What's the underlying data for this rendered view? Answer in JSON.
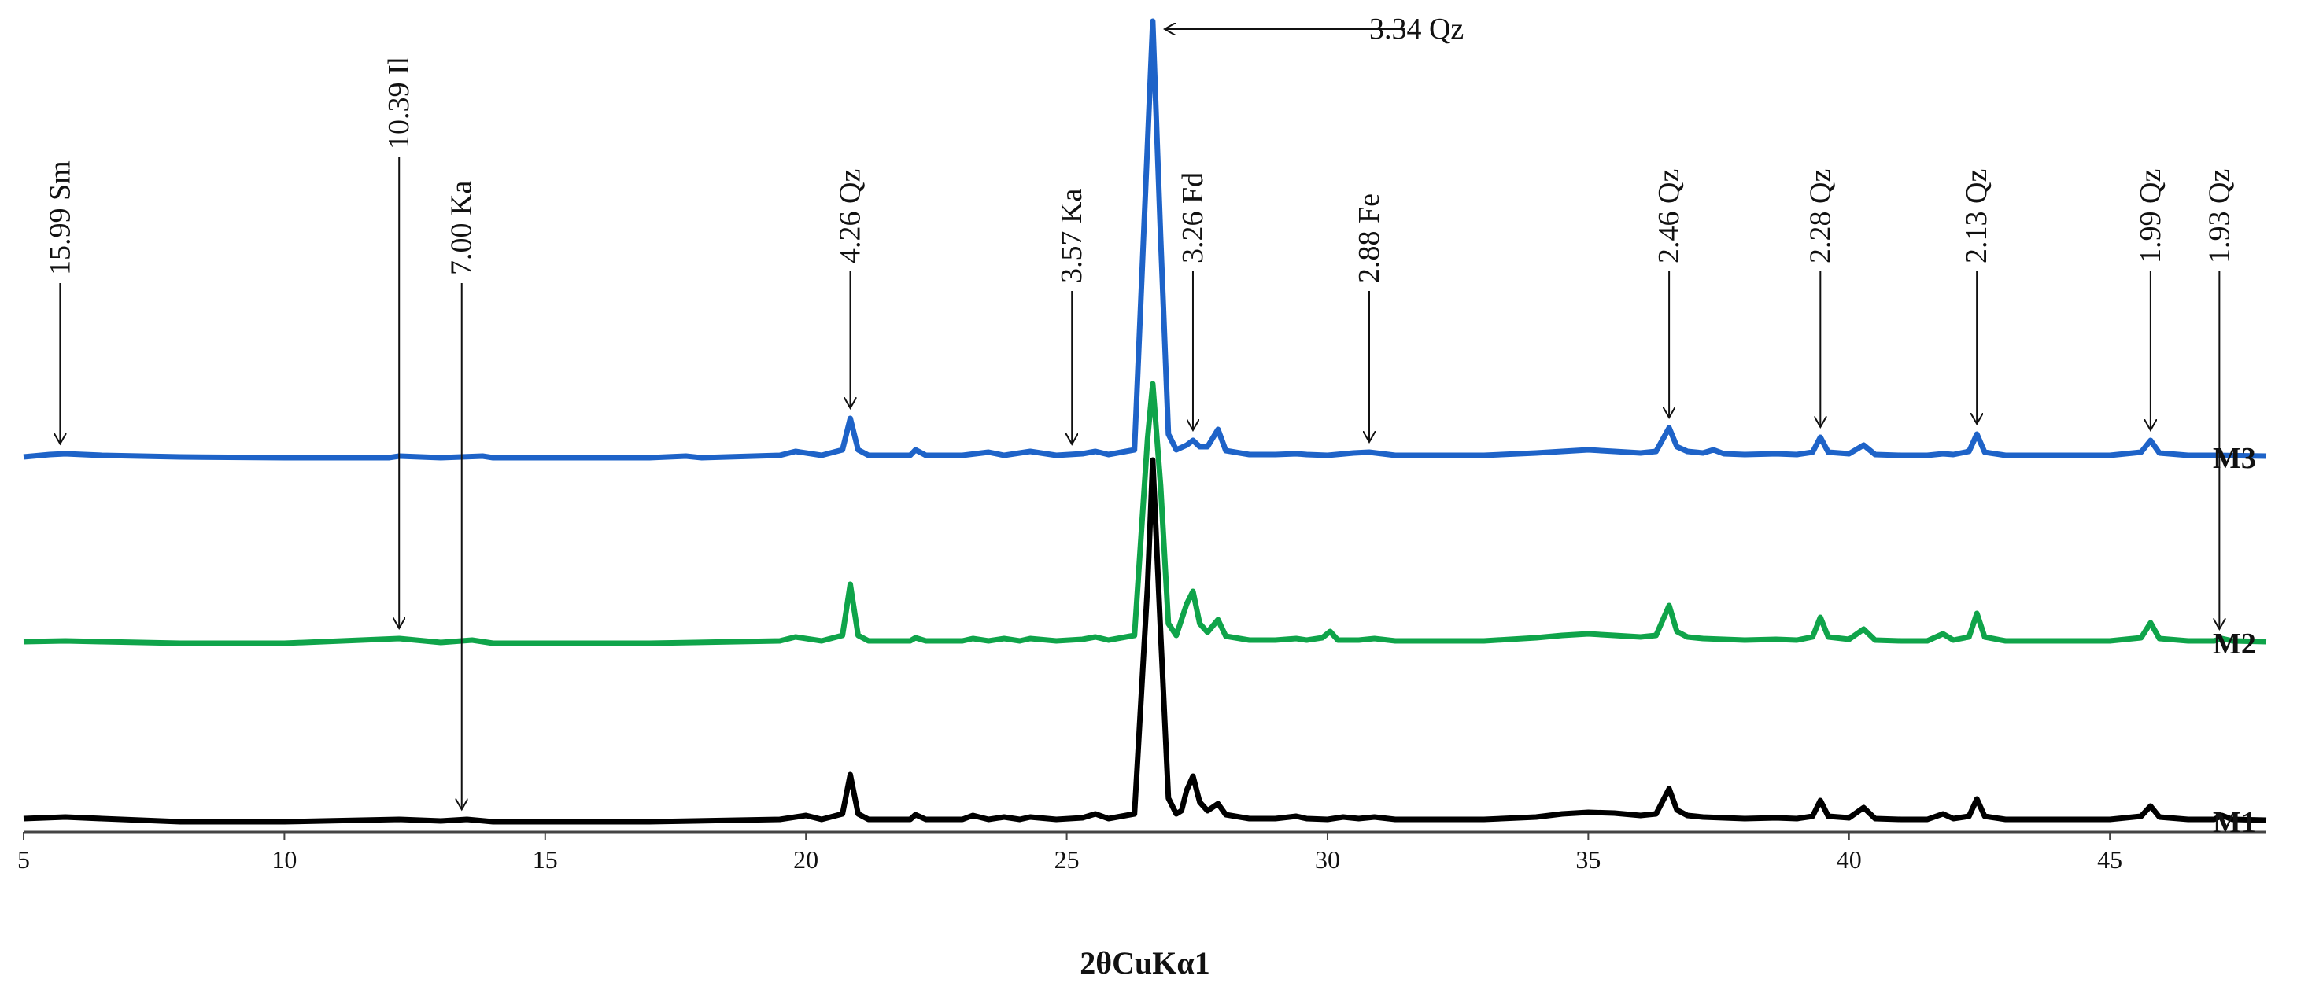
{
  "chart_data": {
    "type": "line",
    "xlabel": "2θCuKα1",
    "ylabel": "",
    "xlim": [
      5,
      48
    ],
    "x_ticks": [
      5,
      10,
      15,
      20,
      25,
      30,
      35,
      40,
      45
    ],
    "grid": false,
    "series": [
      {
        "name": "M1",
        "color": "#000000",
        "baseline": 0,
        "points": [
          [
            5,
            4
          ],
          [
            5.8,
            6
          ],
          [
            6.5,
            4
          ],
          [
            8,
            0
          ],
          [
            10,
            0
          ],
          [
            12.2,
            3
          ],
          [
            13,
            1
          ],
          [
            13.5,
            3
          ],
          [
            14,
            0
          ],
          [
            17,
            0
          ],
          [
            19.5,
            3
          ],
          [
            20,
            8
          ],
          [
            20.3,
            3
          ],
          [
            20.7,
            10
          ],
          [
            20.85,
            60
          ],
          [
            21,
            10
          ],
          [
            21.2,
            3
          ],
          [
            22,
            3
          ],
          [
            22.1,
            9
          ],
          [
            22.3,
            3
          ],
          [
            23,
            3
          ],
          [
            23.2,
            8
          ],
          [
            23.5,
            3
          ],
          [
            23.8,
            6
          ],
          [
            24.1,
            3
          ],
          [
            24.3,
            6
          ],
          [
            24.8,
            3
          ],
          [
            25.3,
            5
          ],
          [
            25.55,
            10
          ],
          [
            25.8,
            4
          ],
          [
            26.3,
            10
          ],
          [
            26.55,
            300
          ],
          [
            26.65,
            460
          ],
          [
            26.8,
            240
          ],
          [
            26.95,
            30
          ],
          [
            27.1,
            10
          ],
          [
            27.2,
            14
          ],
          [
            27.3,
            40
          ],
          [
            27.42,
            58
          ],
          [
            27.55,
            25
          ],
          [
            27.7,
            14
          ],
          [
            27.9,
            23
          ],
          [
            28.05,
            9
          ],
          [
            28.5,
            4
          ],
          [
            29,
            4
          ],
          [
            29.4,
            7
          ],
          [
            29.6,
            4
          ],
          [
            30,
            3
          ],
          [
            30.3,
            6
          ],
          [
            30.6,
            4
          ],
          [
            30.9,
            6
          ],
          [
            31.3,
            3
          ],
          [
            33,
            3
          ],
          [
            34,
            6
          ],
          [
            34.5,
            10
          ],
          [
            35,
            12
          ],
          [
            35.5,
            11
          ],
          [
            36,
            8
          ],
          [
            36.3,
            10
          ],
          [
            36.55,
            42
          ],
          [
            36.7,
            15
          ],
          [
            36.9,
            8
          ],
          [
            37.2,
            6
          ],
          [
            38,
            4
          ],
          [
            38.6,
            5
          ],
          [
            39,
            4
          ],
          [
            39.3,
            7
          ],
          [
            39.45,
            27
          ],
          [
            39.6,
            7
          ],
          [
            40,
            5
          ],
          [
            40.28,
            18
          ],
          [
            40.5,
            4
          ],
          [
            41,
            3
          ],
          [
            41.5,
            3
          ],
          [
            41.8,
            10
          ],
          [
            42,
            4
          ],
          [
            42.3,
            7
          ],
          [
            42.45,
            29
          ],
          [
            42.6,
            7
          ],
          [
            43,
            3
          ],
          [
            44,
            3
          ],
          [
            45,
            3
          ],
          [
            45.6,
            7
          ],
          [
            45.78,
            20
          ],
          [
            45.95,
            6
          ],
          [
            46.5,
            3
          ],
          [
            47,
            3
          ],
          [
            47.15,
            8
          ],
          [
            47.35,
            3
          ],
          [
            48,
            2
          ]
        ]
      },
      {
        "name": "M2",
        "color": "#0fa44a",
        "baseline": 0,
        "points": [
          [
            5,
            2
          ],
          [
            5.8,
            3
          ],
          [
            6.5,
            2
          ],
          [
            8,
            0
          ],
          [
            10,
            0
          ],
          [
            12.2,
            6
          ],
          [
            13,
            1
          ],
          [
            13.6,
            4
          ],
          [
            14,
            0
          ],
          [
            17,
            0
          ],
          [
            19.5,
            3
          ],
          [
            19.8,
            8
          ],
          [
            20.3,
            3
          ],
          [
            20.7,
            10
          ],
          [
            20.85,
            75
          ],
          [
            21,
            10
          ],
          [
            21.2,
            3
          ],
          [
            22,
            3
          ],
          [
            22.1,
            7
          ],
          [
            22.3,
            3
          ],
          [
            23,
            3
          ],
          [
            23.2,
            6
          ],
          [
            23.5,
            3
          ],
          [
            23.8,
            6
          ],
          [
            24.1,
            3
          ],
          [
            24.3,
            6
          ],
          [
            24.8,
            3
          ],
          [
            25.3,
            5
          ],
          [
            25.55,
            8
          ],
          [
            25.8,
            4
          ],
          [
            26.3,
            10
          ],
          [
            26.55,
            260
          ],
          [
            26.65,
            330
          ],
          [
            26.8,
            200
          ],
          [
            26.95,
            25
          ],
          [
            27.1,
            10
          ],
          [
            27.3,
            50
          ],
          [
            27.42,
            66
          ],
          [
            27.55,
            25
          ],
          [
            27.7,
            14
          ],
          [
            27.9,
            30
          ],
          [
            28.05,
            9
          ],
          [
            28.5,
            4
          ],
          [
            29,
            4
          ],
          [
            29.4,
            6
          ],
          [
            29.6,
            4
          ],
          [
            29.9,
            7
          ],
          [
            30.05,
            15
          ],
          [
            30.2,
            4
          ],
          [
            30.6,
            4
          ],
          [
            30.9,
            6
          ],
          [
            31.3,
            3
          ],
          [
            33,
            3
          ],
          [
            34,
            7
          ],
          [
            34.5,
            10
          ],
          [
            35,
            12
          ],
          [
            35.5,
            10
          ],
          [
            36,
            8
          ],
          [
            36.3,
            10
          ],
          [
            36.55,
            48
          ],
          [
            36.7,
            15
          ],
          [
            36.9,
            8
          ],
          [
            37.2,
            6
          ],
          [
            38,
            4
          ],
          [
            38.6,
            5
          ],
          [
            39,
            4
          ],
          [
            39.3,
            8
          ],
          [
            39.45,
            33
          ],
          [
            39.6,
            8
          ],
          [
            40,
            5
          ],
          [
            40.28,
            18
          ],
          [
            40.5,
            4
          ],
          [
            41,
            3
          ],
          [
            41.5,
            3
          ],
          [
            41.8,
            12
          ],
          [
            42,
            4
          ],
          [
            42.3,
            8
          ],
          [
            42.45,
            38
          ],
          [
            42.6,
            8
          ],
          [
            43,
            3
          ],
          [
            44,
            3
          ],
          [
            45,
            3
          ],
          [
            45.6,
            7
          ],
          [
            45.78,
            26
          ],
          [
            45.95,
            6
          ],
          [
            46.5,
            3
          ],
          [
            47,
            3
          ],
          [
            47.15,
            6
          ],
          [
            47.35,
            3
          ],
          [
            48,
            2
          ]
        ]
      },
      {
        "name": "M3",
        "color": "#1e63c8",
        "baseline": 0,
        "points": [
          [
            5,
            1
          ],
          [
            5.5,
            4
          ],
          [
            5.8,
            5
          ],
          [
            6.5,
            3
          ],
          [
            8,
            1
          ],
          [
            10,
            0
          ],
          [
            12,
            0
          ],
          [
            12.2,
            2
          ],
          [
            13,
            0
          ],
          [
            13.8,
            2
          ],
          [
            14,
            0
          ],
          [
            17,
            0
          ],
          [
            17.7,
            2
          ],
          [
            18,
            0
          ],
          [
            19.5,
            3
          ],
          [
            19.8,
            8
          ],
          [
            20.3,
            3
          ],
          [
            20.7,
            10
          ],
          [
            20.85,
            50
          ],
          [
            21,
            10
          ],
          [
            21.2,
            3
          ],
          [
            22,
            3
          ],
          [
            22.1,
            10
          ],
          [
            22.3,
            3
          ],
          [
            23,
            3
          ],
          [
            23.5,
            7
          ],
          [
            23.8,
            3
          ],
          [
            24.3,
            8
          ],
          [
            24.8,
            3
          ],
          [
            25.3,
            5
          ],
          [
            25.55,
            8
          ],
          [
            25.8,
            4
          ],
          [
            26.3,
            10
          ],
          [
            26.55,
            400
          ],
          [
            26.65,
            555
          ],
          [
            26.8,
            280
          ],
          [
            26.95,
            30
          ],
          [
            27.1,
            10
          ],
          [
            27.3,
            16
          ],
          [
            27.42,
            22
          ],
          [
            27.55,
            14
          ],
          [
            27.7,
            14
          ],
          [
            27.9,
            36
          ],
          [
            28.05,
            9
          ],
          [
            28.5,
            4
          ],
          [
            29,
            4
          ],
          [
            29.4,
            5
          ],
          [
            29.6,
            4
          ],
          [
            30,
            3
          ],
          [
            30.5,
            6
          ],
          [
            30.8,
            7
          ],
          [
            31.3,
            3
          ],
          [
            33,
            3
          ],
          [
            34,
            6
          ],
          [
            34.5,
            8
          ],
          [
            35,
            10
          ],
          [
            35.5,
            8
          ],
          [
            36,
            6
          ],
          [
            36.3,
            8
          ],
          [
            36.55,
            38
          ],
          [
            36.7,
            14
          ],
          [
            36.9,
            8
          ],
          [
            37.2,
            6
          ],
          [
            37.4,
            10
          ],
          [
            37.6,
            5
          ],
          [
            38,
            4
          ],
          [
            38.6,
            5
          ],
          [
            39,
            4
          ],
          [
            39.3,
            7
          ],
          [
            39.45,
            26
          ],
          [
            39.6,
            7
          ],
          [
            40,
            5
          ],
          [
            40.28,
            16
          ],
          [
            40.5,
            4
          ],
          [
            41,
            3
          ],
          [
            41.5,
            3
          ],
          [
            41.8,
            5
          ],
          [
            42,
            4
          ],
          [
            42.3,
            8
          ],
          [
            42.45,
            30
          ],
          [
            42.6,
            7
          ],
          [
            43,
            3
          ],
          [
            44,
            3
          ],
          [
            45,
            3
          ],
          [
            45.6,
            7
          ],
          [
            45.78,
            22
          ],
          [
            45.95,
            6
          ],
          [
            46.5,
            3
          ],
          [
            47,
            3
          ],
          [
            48,
            2
          ]
        ]
      }
    ],
    "annotations": [
      {
        "text": "15.99  Sm",
        "x": 5.7,
        "target": "M3",
        "arrow_dir": "down"
      },
      {
        "text": "10.39  Il",
        "x": 12.2,
        "target": "M2",
        "arrow_dir": "down"
      },
      {
        "text": "7.00 Ka",
        "x": 13.4,
        "target": "M1",
        "arrow_dir": "down"
      },
      {
        "text": "4.26 Qz",
        "x": 20.85,
        "target": "M3",
        "arrow_dir": "down"
      },
      {
        "text": "3.57 Ka",
        "x": 25.1,
        "target": "M3",
        "arrow_dir": "down"
      },
      {
        "text": "3.26 Fd",
        "x": 27.42,
        "target": "M3",
        "arrow_dir": "down"
      },
      {
        "text": "2.88 Fe",
        "x": 30.8,
        "target": "M3",
        "arrow_dir": "down"
      },
      {
        "text": "2.46 Qz",
        "x": 36.55,
        "target": "M3",
        "arrow_dir": "down"
      },
      {
        "text": "2.28 Qz",
        "x": 39.45,
        "target": "M3",
        "arrow_dir": "down"
      },
      {
        "text": "2.13 Qz",
        "x": 42.45,
        "target": "M3",
        "arrow_dir": "down"
      },
      {
        "text": "1.99 Qz",
        "x": 45.78,
        "target": "M3",
        "arrow_dir": "down"
      },
      {
        "text": "1.93 Qz",
        "x": 47.1,
        "target": "M2",
        "arrow_dir": "down"
      },
      {
        "text": "3.34  Qz",
        "x": 26.65,
        "target": "M3",
        "arrow_dir": "left"
      }
    ]
  }
}
